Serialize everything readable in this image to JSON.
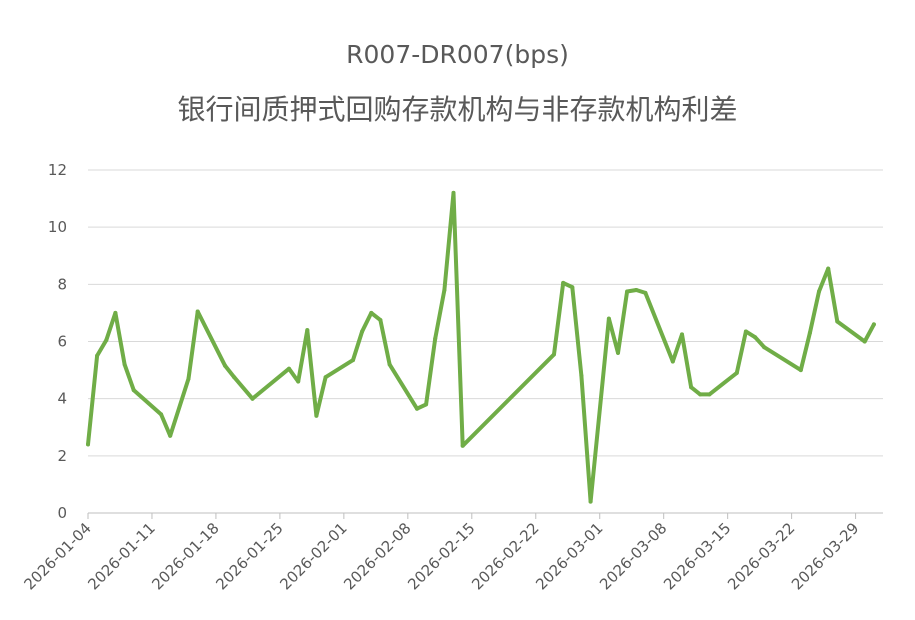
{
  "chart_data": {
    "type": "line",
    "title": "R007-DR007(bps)",
    "subtitle": "银行间质押式回购存款机构与非存款机构利差",
    "xlabel": "",
    "ylabel": "",
    "ylim": [
      0,
      12
    ],
    "yticks": [
      0,
      2,
      4,
      6,
      8,
      10,
      12
    ],
    "xrange": [
      "2026-01-04",
      "2026-04-01"
    ],
    "xticks": [
      "2026-01-04",
      "2026-01-11",
      "2026-01-18",
      "2026-01-25",
      "2026-02-01",
      "2026-02-08",
      "2026-02-15",
      "2026-02-22",
      "2026-03-01",
      "2026-03-08",
      "2026-03-15",
      "2026-03-22",
      "2026-03-29"
    ],
    "grid": true,
    "legend": "none",
    "color": "#70ad47",
    "series": [
      {
        "x": [
          "2026-01-04",
          "2026-01-05",
          "2026-01-06",
          "2026-01-07",
          "2026-01-08",
          "2026-01-09",
          "2026-01-12",
          "2026-01-13",
          "2026-01-15",
          "2026-01-16",
          "2026-01-19",
          "2026-01-20",
          "2026-01-22",
          "2026-01-26",
          "2026-01-27",
          "2026-01-28",
          "2026-01-29",
          "2026-01-30",
          "2026-02-02",
          "2026-02-03",
          "2026-02-04",
          "2026-02-05",
          "2026-02-06",
          "2026-02-09",
          "2026-02-10",
          "2026-02-11",
          "2026-02-12",
          "2026-02-13",
          "2026-02-14",
          "2026-02-24",
          "2026-02-25",
          "2026-02-26",
          "2026-02-27",
          "2026-02-28",
          "2026-03-02",
          "2026-03-03",
          "2026-03-04",
          "2026-03-05",
          "2026-03-06",
          "2026-03-09",
          "2026-03-10",
          "2026-03-11",
          "2026-03-12",
          "2026-03-13",
          "2026-03-16",
          "2026-03-17",
          "2026-03-18",
          "2026-03-19",
          "2026-03-23",
          "2026-03-24",
          "2026-03-25",
          "2026-03-26",
          "2026-03-27",
          "2026-03-30",
          "2026-03-31"
        ],
        "values": [
          2.4,
          5.5,
          6.05,
          7.0,
          5.2,
          4.3,
          3.45,
          2.7,
          4.7,
          7.05,
          5.15,
          4.75,
          4.0,
          5.05,
          4.6,
          6.4,
          3.4,
          4.75,
          5.35,
          6.35,
          7.0,
          6.75,
          5.2,
          3.65,
          3.8,
          6.1,
          7.8,
          11.2,
          2.35,
          5.55,
          8.05,
          7.9,
          4.8,
          0.4,
          6.8,
          5.6,
          7.75,
          7.8,
          7.7,
          5.3,
          6.25,
          4.4,
          4.15,
          4.15,
          4.9,
          6.35,
          6.15,
          5.8,
          5.0,
          6.3,
          7.75,
          8.55,
          6.7,
          6.0,
          6.6
        ]
      }
    ]
  }
}
